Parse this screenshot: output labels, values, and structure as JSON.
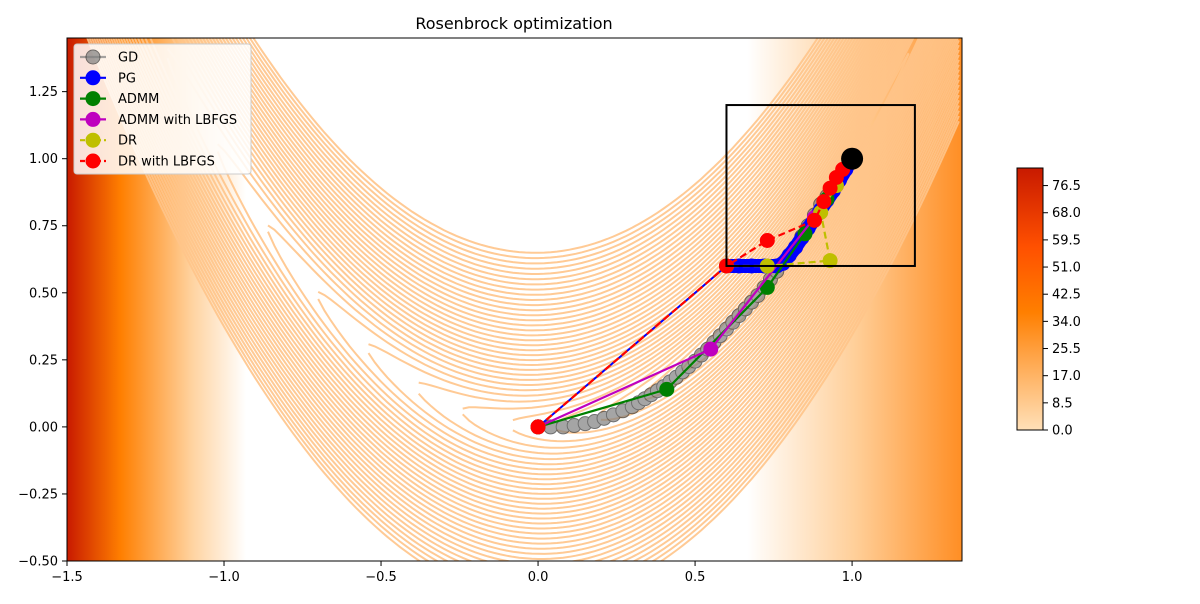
{
  "chart_data": {
    "type": "line",
    "title": "Rosenbrock optimization",
    "xlabel": "",
    "ylabel": "",
    "xlim": [
      -1.5,
      1.35
    ],
    "ylim": [
      -0.5,
      1.45
    ],
    "x_ticks": [
      "−1.5",
      "−1.0",
      "−0.5",
      "0.0",
      "0.5",
      "1.0"
    ],
    "x_tick_values": [
      -1.5,
      -1.0,
      -0.5,
      0.0,
      0.5,
      1.0
    ],
    "y_ticks": [
      "−0.50",
      "−0.25",
      "0.00",
      "0.25",
      "0.50",
      "0.75",
      "1.00",
      "1.25"
    ],
    "y_tick_values": [
      -0.5,
      -0.25,
      0.0,
      0.25,
      0.5,
      0.75,
      1.0,
      1.25
    ],
    "grid": false,
    "legend_position": "top-left",
    "constraint_box": {
      "x": [
        0.6,
        1.2
      ],
      "y": [
        0.6,
        1.2
      ]
    },
    "optimum": [
      1.0,
      1.0
    ],
    "colorbar": {
      "ticks": [
        "0.0",
        "8.5",
        "17.0",
        "25.5",
        "34.0",
        "42.5",
        "51.0",
        "59.5",
        "68.0",
        "76.5"
      ],
      "tick_values": [
        0,
        8.5,
        17,
        25.5,
        34,
        42.5,
        51,
        59.5,
        68,
        76.5
      ],
      "range": [
        0,
        82
      ]
    },
    "series": [
      {
        "name": "GD",
        "color": "#808080",
        "dashed": false,
        "opacity": 0.7,
        "x": [
          0.0,
          0.04,
          0.08,
          0.115,
          0.15,
          0.18,
          0.21,
          0.24,
          0.27,
          0.3,
          0.32,
          0.34,
          0.36,
          0.38,
          0.4,
          0.42,
          0.44,
          0.46,
          0.48,
          0.5,
          0.52,
          0.54,
          0.56,
          0.58,
          0.6,
          0.62,
          0.64,
          0.66,
          0.68,
          0.7,
          0.72,
          0.74,
          0.76,
          0.78,
          0.8,
          0.82,
          0.84,
          0.86,
          0.88,
          0.9,
          0.92,
          0.94,
          0.96,
          0.98,
          1.0
        ],
        "y": [
          0.0,
          0.0,
          0.0,
          0.005,
          0.012,
          0.02,
          0.032,
          0.045,
          0.06,
          0.075,
          0.09,
          0.105,
          0.12,
          0.135,
          0.15,
          0.168,
          0.185,
          0.205,
          0.225,
          0.245,
          0.268,
          0.29,
          0.315,
          0.34,
          0.365,
          0.39,
          0.415,
          0.44,
          0.465,
          0.49,
          0.52,
          0.55,
          0.58,
          0.61,
          0.64,
          0.67,
          0.71,
          0.75,
          0.79,
          0.83,
          0.86,
          0.89,
          0.93,
          0.965,
          1.0
        ]
      },
      {
        "name": "PG",
        "color": "#0000ff",
        "dashed": false,
        "opacity": 1,
        "x": [
          0.0,
          0.6,
          0.64,
          0.68,
          0.72,
          0.76,
          0.78,
          0.8,
          0.82,
          0.84,
          0.86,
          0.88,
          0.9,
          0.92,
          0.94,
          0.96,
          0.98,
          1.0
        ],
        "y": [
          0.0,
          0.6,
          0.6,
          0.6,
          0.6,
          0.6,
          0.61,
          0.64,
          0.67,
          0.705,
          0.74,
          0.775,
          0.81,
          0.845,
          0.88,
          0.92,
          0.96,
          1.0
        ]
      },
      {
        "name": "ADMM",
        "color": "#008000",
        "dashed": false,
        "opacity": 1,
        "x": [
          0.0,
          0.41,
          0.73,
          0.85,
          0.92,
          1.0
        ],
        "y": [
          0.0,
          0.14,
          0.52,
          0.72,
          0.85,
          1.0
        ]
      },
      {
        "name": "ADMM with LBFGS",
        "color": "#bf00bf",
        "dashed": false,
        "opacity": 1,
        "x": [
          0.0,
          0.55,
          0.88,
          0.95,
          1.0
        ],
        "y": [
          0.0,
          0.29,
          0.78,
          0.9,
          1.0
        ]
      },
      {
        "name": "DR",
        "color": "#bfbf00",
        "dashed": true,
        "opacity": 1,
        "x": [
          0.0,
          0.6,
          0.73,
          0.93,
          0.9,
          0.95,
          1.0
        ],
        "y": [
          0.0,
          0.6,
          0.6,
          0.62,
          0.8,
          0.9,
          1.0
        ]
      },
      {
        "name": "DR with LBFGS",
        "color": "#ff0000",
        "dashed": true,
        "opacity": 1,
        "x": [
          0.0,
          0.6,
          0.73,
          0.88,
          0.91,
          0.93,
          0.95,
          0.97,
          1.0
        ],
        "y": [
          0.0,
          0.6,
          0.695,
          0.77,
          0.84,
          0.89,
          0.93,
          0.96,
          1.0
        ]
      }
    ]
  }
}
